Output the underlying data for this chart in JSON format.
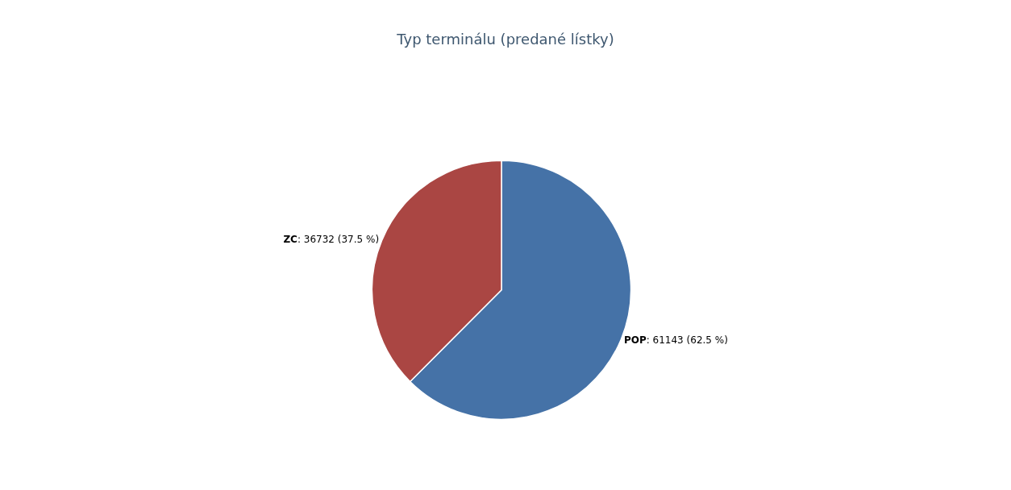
{
  "chart_data": {
    "type": "pie",
    "title": "Typ terminálu (predané lístky)",
    "categories": [
      "POP",
      "ZC"
    ],
    "values": [
      61143,
      36732
    ],
    "colors": [
      "#4572a7",
      "#aa4643"
    ],
    "value_labels": [
      ": 61143 (62.5 %)",
      ": 36732 (37.5 %)"
    ],
    "legend": false
  }
}
